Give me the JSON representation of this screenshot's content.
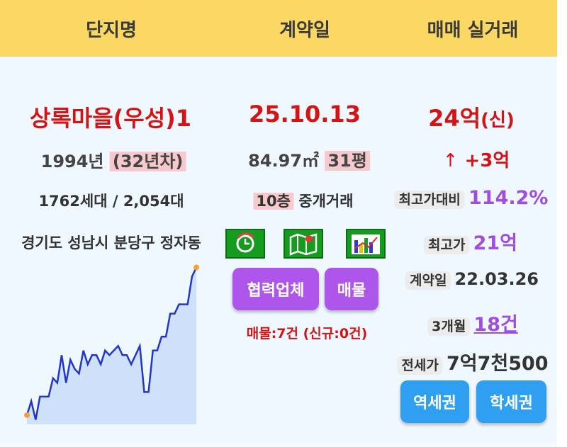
{
  "header": {
    "col1": "단지명",
    "col2": "계약일",
    "col3": "매매 실거래"
  },
  "complex": {
    "name": "상록마을(우성)1",
    "built_year": "1994년",
    "age": "(32년차)",
    "households": "1762세대 / 2,054대",
    "address": "경기도 성남시 분당구 정자동"
  },
  "contract": {
    "date": "25.10.13",
    "area": "84.97㎡",
    "pyeong": "31평",
    "floor": "10층",
    "deal_type": "중개거래",
    "icons": [
      "clock-refresh-icon",
      "map-pin-icon",
      "bar-chart-icon"
    ],
    "partner_button": "협력업체",
    "listing_button": "매물",
    "listing_count": "매물:7건 (신규:0건)"
  },
  "price": {
    "amount": "24억",
    "tag": "(신)",
    "change_arrow": "↑",
    "change": "+3억",
    "vs_high_label": "최고가대비",
    "vs_high_value": "114.2%",
    "high_label": "최고가",
    "high_value": "21억",
    "contract_label": "계약일",
    "contract_value": "22.03.26",
    "three_month_label": "3개월",
    "three_month_value": "18건",
    "jeonse_label": "전세가",
    "jeonse_value": "7억7천500",
    "station_button": "역세권",
    "school_button": "학세권"
  },
  "colors": {
    "header_bg": "#fbd764",
    "content_bg": "#eff8fe",
    "red": "#d41414",
    "purple": "#a04ee0",
    "button_purple": "#ae55ec",
    "button_blue": "#2f9ff1",
    "icon_green": "#159b1d",
    "line": "#2236c8",
    "area": "#cfe0fb",
    "endpoint": "#f5a03c"
  },
  "chart_data": {
    "type": "area",
    "title": "",
    "xlabel": "",
    "ylabel": "",
    "x": [
      1,
      2,
      3,
      4,
      5,
      6,
      7,
      8,
      9,
      10,
      11,
      12,
      13,
      14,
      15,
      16,
      17,
      18,
      19,
      20,
      21,
      22,
      23,
      24,
      25,
      26,
      27,
      28,
      29,
      30,
      31,
      32,
      33,
      34,
      35,
      36,
      37,
      38,
      39,
      40
    ],
    "series": [
      {
        "values": [
          2,
          5,
          1,
          6,
          6,
          6,
          10,
          9,
          15,
          9,
          14,
          12,
          11,
          16,
          13,
          15,
          15,
          13,
          16,
          15,
          16,
          17,
          15,
          15,
          13,
          15,
          17,
          7,
          7,
          16,
          16,
          19,
          19,
          24,
          24,
          26,
          26,
          26,
          32,
          34
        ]
      }
    ],
    "ylim": [
      0,
      35
    ],
    "grid": false,
    "legend": "none"
  }
}
